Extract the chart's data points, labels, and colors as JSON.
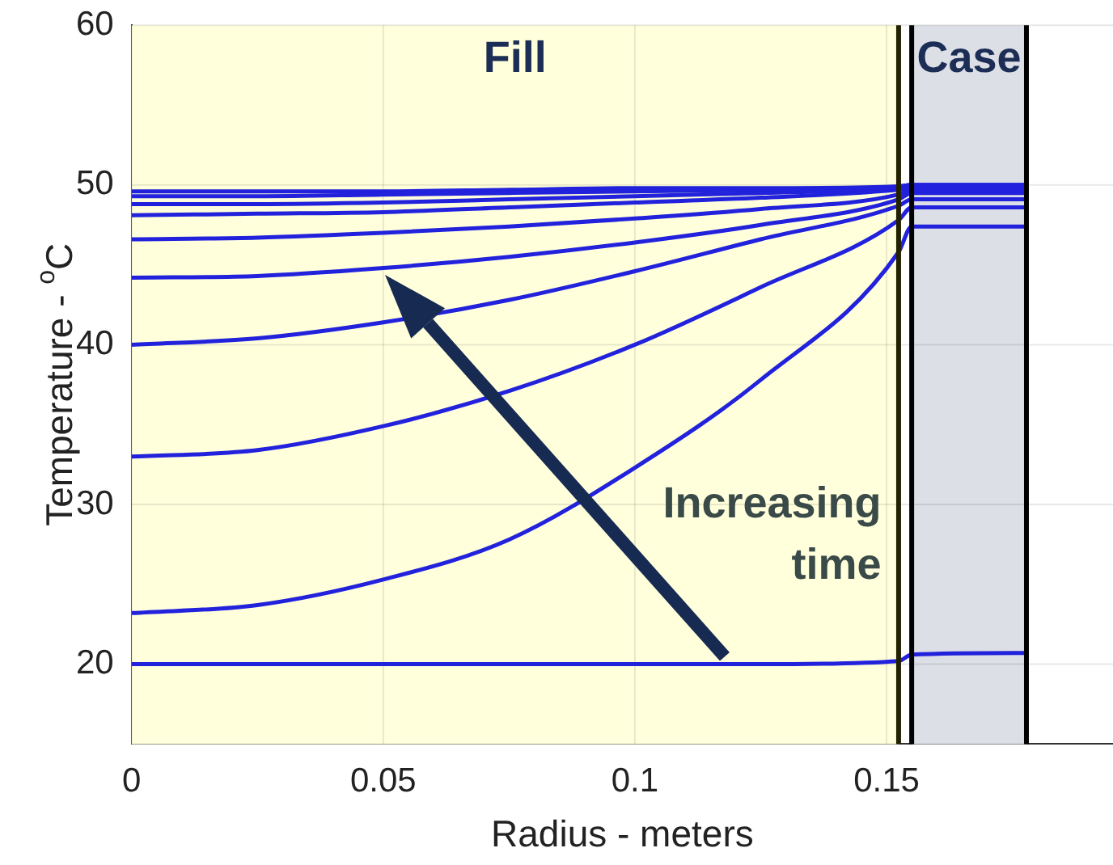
{
  "chart_data": {
    "type": "line",
    "xlabel": "Radius - meters",
    "ylabel": "Temperature - $^{o}$C",
    "x": [
      0,
      0.025,
      0.05,
      0.075,
      0.1,
      0.125,
      0.1524,
      0.155,
      0.1778
    ],
    "xlim": [
      0,
      0.195
    ],
    "xticks": [
      0,
      0.05,
      0.1,
      0.15
    ],
    "ylim": [
      15,
      60
    ],
    "yticks": [
      20,
      30,
      40,
      50,
      60
    ],
    "grid": true,
    "legend": false,
    "marker": "none",
    "line_style": "solid",
    "series": [
      {
        "color": "#2222dd",
        "values": [
          20,
          20,
          20,
          20,
          20,
          20,
          20.2,
          20.6,
          20.7
        ]
      },
      {
        "color": "#2222dd",
        "values": [
          23.2,
          23.7,
          25.3,
          27.8,
          32.3,
          37.8,
          45.8,
          47.4,
          47.4
        ]
      },
      {
        "color": "#2222dd",
        "values": [
          33,
          33.4,
          34.9,
          37.1,
          40,
          43.6,
          47.8,
          48.6,
          48.6
        ]
      },
      {
        "color": "#2222dd",
        "values": [
          40,
          40.4,
          41.4,
          42.8,
          44.6,
          46.6,
          48.7,
          49.1,
          49.1
        ]
      },
      {
        "color": "#2222dd",
        "values": [
          44.2,
          44.3,
          44.8,
          45.5,
          46.4,
          47.5,
          49.1,
          49.5,
          49.5
        ]
      },
      {
        "color": "#2222dd",
        "values": [
          46.6,
          46.7,
          47,
          47.4,
          47.9,
          48.5,
          49.4,
          49.7,
          49.7
        ]
      },
      {
        "color": "#2222dd",
        "values": [
          48.1,
          48.2,
          48.3,
          48.6,
          48.9,
          49.2,
          49.7,
          49.8,
          49.8
        ]
      },
      {
        "color": "#2222dd",
        "values": [
          48.8,
          48.8,
          48.9,
          49.1,
          49.3,
          49.5,
          49.8,
          49.9,
          49.9
        ]
      },
      {
        "color": "#2222dd",
        "values": [
          49.3,
          49.3,
          49.4,
          49.5,
          49.6,
          49.7,
          49.9,
          50,
          50
        ]
      },
      {
        "color": "#2222dd",
        "values": [
          49.6,
          49.6,
          49.6,
          49.7,
          49.8,
          49.8,
          49.9,
          50,
          50
        ]
      }
    ],
    "bands": [
      {
        "axis": "x",
        "from": 0,
        "to": 0.1524,
        "label": "Fill",
        "color": "#ffffdc"
      },
      {
        "axis": "x",
        "from": 0.155,
        "to": 0.1778,
        "label": "Case",
        "color": "#dcdfe6"
      }
    ],
    "ref_lines": [
      {
        "axis": "x",
        "value": 0.1524,
        "color": "#222200"
      },
      {
        "axis": "x",
        "value": 0.155,
        "color": "#000000"
      },
      {
        "axis": "x",
        "value": 0.1778,
        "color": "#000000"
      }
    ],
    "annotations": [
      "Increasing time"
    ]
  }
}
